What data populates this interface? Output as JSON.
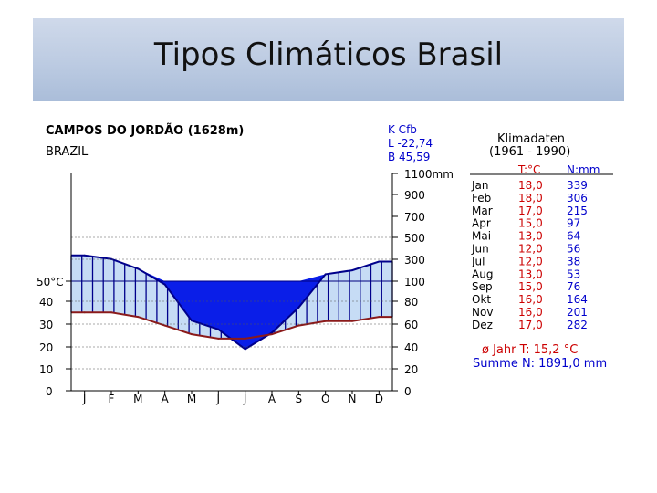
{
  "slide": {
    "title": "Tipos Climáticos Brasil"
  },
  "station": {
    "name": "CAMPOS DO JORDÃO (1628m)",
    "country": "BRAZIL",
    "koppen": "K Cfb",
    "latitude": "L -22,74",
    "longitude": "B  45,59"
  },
  "table": {
    "title": "Klimadaten",
    "period": "(1961 - 1990)",
    "headers": [
      "T:°C",
      "N:mm"
    ],
    "rows": [
      [
        "Jan",
        "18,0",
        "339"
      ],
      [
        "Feb",
        "18,0",
        "306"
      ],
      [
        "Mar",
        "17,0",
        "215"
      ],
      [
        "Apr",
        "15,0",
        "97"
      ],
      [
        "Mai",
        "13,0",
        "64"
      ],
      [
        "Jun",
        "12,0",
        "56"
      ],
      [
        "Jul",
        "12,0",
        "38"
      ],
      [
        "Aug",
        "13,0",
        "53"
      ],
      [
        "Sep",
        "15,0",
        "76"
      ],
      [
        "Okt",
        "16,0",
        "164"
      ],
      [
        "Nov",
        "16,0",
        "201"
      ],
      [
        "Dez",
        "17,0",
        "282"
      ]
    ],
    "annual_temp": "ø Jahr T: 15,2 °C",
    "annual_precip": "Summe N: 1891,0 mm"
  },
  "chart_data": {
    "type": "line",
    "categories": [
      "J",
      "F",
      "M",
      "A",
      "M",
      "J",
      "J",
      "A",
      "S",
      "O",
      "N",
      "D"
    ],
    "series": [
      {
        "name": "T:°C",
        "values": [
          18,
          18,
          17,
          15,
          13,
          12,
          12,
          13,
          15,
          16,
          16,
          17
        ]
      },
      {
        "name": "N:mm",
        "values": [
          339,
          306,
          215,
          97,
          64,
          56,
          38,
          53,
          76,
          164,
          201,
          282
        ]
      }
    ],
    "left_ticks": [
      "0",
      "10",
      "20",
      "30",
      "40",
      "50°C"
    ],
    "right_ticks": [
      "0",
      "20",
      "40",
      "60",
      "80",
      "100",
      "300",
      "500",
      "700",
      "900",
      "1100mm"
    ],
    "temp_range": [
      0,
      50
    ],
    "precip_range": [
      0,
      1100
    ],
    "colors": {
      "temperature": "#8b1a1a",
      "precip_low": "#c6dcf5",
      "precip_high": "#0a1ee8",
      "precip_bars": "#00008b",
      "grid": "#555555",
      "table_blue": "#0000cc",
      "table_red": "#cc0000"
    }
  }
}
